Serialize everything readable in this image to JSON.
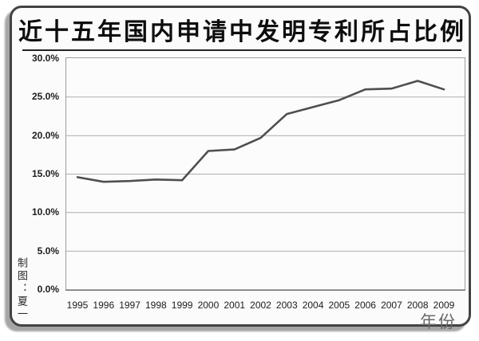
{
  "title": "近十五年国内申请中发明专利所占比例",
  "credit": "制图：夏一",
  "colors": {
    "line": "#4f4f4f",
    "grid": "#adadad",
    "plot_border": "#9c9c9c",
    "axis": "#787878"
  },
  "chart_data": {
    "type": "line",
    "title": "近十五年国内申请中发明专利所占比例",
    "xlabel": "年份",
    "ylabel": "",
    "categories": [
      "1995",
      "1996",
      "1997",
      "1998",
      "1999",
      "2000",
      "2001",
      "2002",
      "2003",
      "2004",
      "2005",
      "2006",
      "2007",
      "2008",
      "2009"
    ],
    "values": [
      14.6,
      14.0,
      14.1,
      14.3,
      14.2,
      18.0,
      18.2,
      19.7,
      22.8,
      23.7,
      24.6,
      26.0,
      26.1,
      27.1,
      26.0
    ],
    "ylim": [
      0,
      30
    ],
    "yticks": [
      0,
      5,
      10,
      15,
      20,
      25,
      30
    ],
    "ytick_labels": [
      "0.0%",
      "5.0%",
      "10.0%",
      "15.0%",
      "20.0%",
      "25.0%",
      "30.0%"
    ],
    "grid": true,
    "legend": false
  }
}
